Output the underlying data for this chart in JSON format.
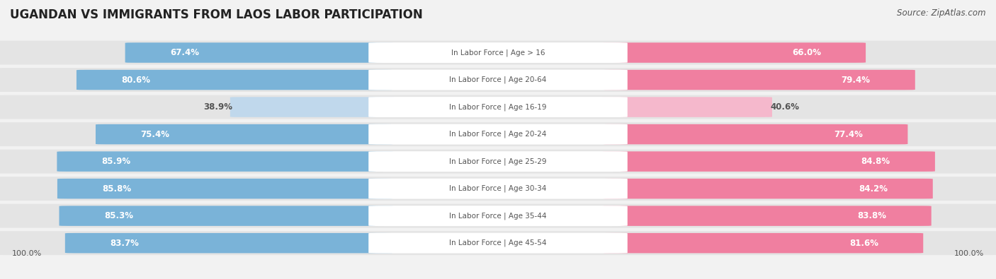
{
  "title": "UGANDAN VS IMMIGRANTS FROM LAOS LABOR PARTICIPATION",
  "source": "Source: ZipAtlas.com",
  "categories": [
    "In Labor Force | Age > 16",
    "In Labor Force | Age 20-64",
    "In Labor Force | Age 16-19",
    "In Labor Force | Age 20-24",
    "In Labor Force | Age 25-29",
    "In Labor Force | Age 30-34",
    "In Labor Force | Age 35-44",
    "In Labor Force | Age 45-54"
  ],
  "ugandan_values": [
    67.4,
    80.6,
    38.9,
    75.4,
    85.9,
    85.8,
    85.3,
    83.7
  ],
  "laos_values": [
    66.0,
    79.4,
    40.6,
    77.4,
    84.8,
    84.2,
    83.8,
    81.6
  ],
  "ugandan_color": "#7ab3d8",
  "ugandan_color_light": "#c0d8ec",
  "laos_color": "#f07fa0",
  "laos_color_light": "#f5b8cc",
  "label_color_white": "#ffffff",
  "label_color_dark": "#555555",
  "bg_color": "#f2f2f2",
  "row_bg_color": "#e4e4e4",
  "row_bg_color_alt": "#ebebeb",
  "title_fontsize": 12,
  "source_fontsize": 8.5,
  "bar_label_fontsize": 8.5,
  "cat_label_fontsize": 7.5,
  "legend_fontsize": 9,
  "axis_label_fontsize": 8,
  "max_val": 100.0
}
